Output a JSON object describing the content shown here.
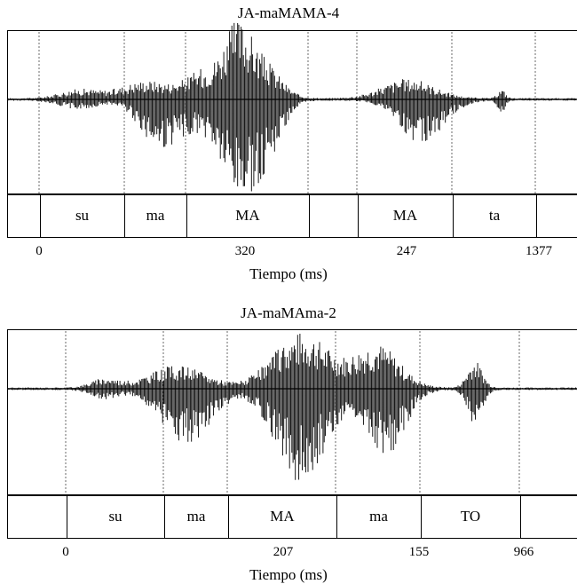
{
  "panels": [
    {
      "title": "JA-maMAMA-4",
      "segments": [
        "su",
        "ma",
        "MA",
        "",
        "MA",
        "ta",
        ""
      ],
      "tick_labels": [
        "0",
        "320",
        "247",
        "1377"
      ],
      "xlabel": "Tiempo (ms)"
    },
    {
      "title": "JA-maMAma-2",
      "segments": [
        "su",
        "ma",
        "MA",
        "ma",
        "TO",
        ""
      ],
      "tick_labels": [
        "0",
        "207",
        "155",
        "966"
      ],
      "xlabel": "Tiempo (ms)"
    }
  ]
}
